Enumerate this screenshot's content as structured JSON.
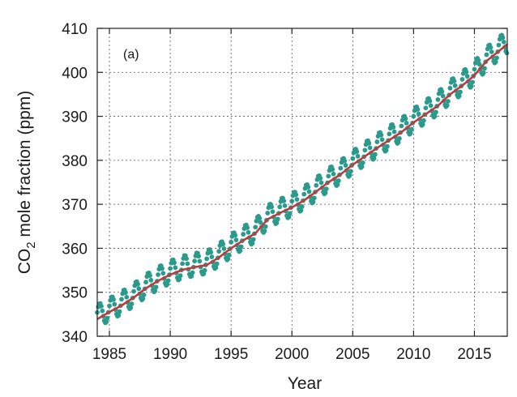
{
  "chart_data": {
    "type": "line",
    "panel_label": "(a)",
    "xlabel": "Year",
    "ylabel_prefix": "CO",
    "ylabel_subscript": "2",
    "ylabel_suffix": " mole fraction (ppm)",
    "xlim": [
      1984,
      2017.7
    ],
    "ylim": [
      340,
      410
    ],
    "x_ticks": [
      1985,
      1990,
      1995,
      2000,
      2005,
      2010,
      2015
    ],
    "y_ticks": [
      340,
      350,
      360,
      370,
      380,
      390,
      400,
      410
    ],
    "grid": true,
    "colors": {
      "monthly_points": "#2a9a8c",
      "trend_line": "#c0393b",
      "grid": "#555555",
      "frame": "#222222"
    },
    "series": [
      {
        "style": "points",
        "seasonal_amplitude_ppm": 2.6,
        "values": [
          [
            1984.0,
            344.6
          ],
          [
            1985.0,
            346.1
          ],
          [
            1986.0,
            347.6
          ],
          [
            1987.0,
            349.4
          ],
          [
            1988.0,
            351.5
          ],
          [
            1989.0,
            353.2
          ],
          [
            1990.0,
            354.6
          ],
          [
            1991.0,
            355.7
          ],
          [
            1992.0,
            356.3
          ],
          [
            1993.0,
            356.8
          ],
          [
            1994.0,
            358.5
          ],
          [
            1995.0,
            360.6
          ],
          [
            1996.0,
            362.4
          ],
          [
            1997.0,
            364.0
          ],
          [
            1998.0,
            367.2
          ],
          [
            1999.0,
            368.6
          ],
          [
            2000.0,
            369.9
          ],
          [
            2001.0,
            371.5
          ],
          [
            2002.0,
            373.5
          ],
          [
            2003.0,
            375.6
          ],
          [
            2004.0,
            377.4
          ],
          [
            2005.0,
            379.6
          ],
          [
            2006.0,
            381.5
          ],
          [
            2007.0,
            383.4
          ],
          [
            2008.0,
            385.2
          ],
          [
            2009.0,
            387.0
          ],
          [
            2010.0,
            389.2
          ],
          [
            2011.0,
            391.1
          ],
          [
            2012.0,
            393.0
          ],
          [
            2013.0,
            395.6
          ],
          [
            2014.0,
            397.6
          ],
          [
            2015.0,
            399.9
          ],
          [
            2016.0,
            403.2
          ],
          [
            2017.0,
            405.4
          ],
          [
            2017.7,
            407.0
          ]
        ]
      },
      {
        "style": "line",
        "values": [
          [
            1984.0,
            343.9
          ],
          [
            1985.0,
            345.5
          ],
          [
            1986.0,
            347.0
          ],
          [
            1987.0,
            348.8
          ],
          [
            1988.0,
            350.9
          ],
          [
            1989.0,
            352.6
          ],
          [
            1990.0,
            354.0
          ],
          [
            1991.0,
            355.1
          ],
          [
            1992.0,
            355.7
          ],
          [
            1993.0,
            356.2
          ],
          [
            1994.0,
            357.9
          ],
          [
            1995.0,
            360.0
          ],
          [
            1996.0,
            361.8
          ],
          [
            1997.0,
            363.4
          ],
          [
            1998.0,
            366.6
          ],
          [
            1999.0,
            368.0
          ],
          [
            2000.0,
            369.3
          ],
          [
            2001.0,
            370.9
          ],
          [
            2002.0,
            372.9
          ],
          [
            2003.0,
            375.0
          ],
          [
            2004.0,
            376.8
          ],
          [
            2005.0,
            379.0
          ],
          [
            2006.0,
            380.9
          ],
          [
            2007.0,
            382.8
          ],
          [
            2008.0,
            384.6
          ],
          [
            2009.0,
            386.4
          ],
          [
            2010.0,
            388.6
          ],
          [
            2011.0,
            390.5
          ],
          [
            2012.0,
            392.4
          ],
          [
            2013.0,
            395.0
          ],
          [
            2014.0,
            397.0
          ],
          [
            2015.0,
            399.3
          ],
          [
            2016.0,
            402.6
          ],
          [
            2017.0,
            404.8
          ],
          [
            2017.7,
            406.4
          ]
        ]
      }
    ]
  }
}
